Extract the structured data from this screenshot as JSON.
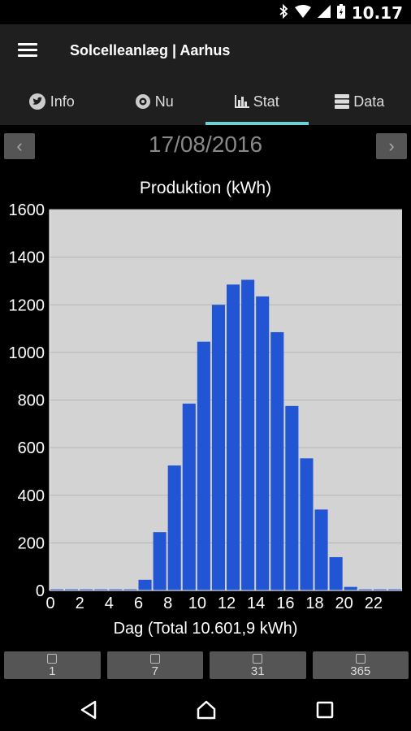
{
  "status": {
    "time": "10.17"
  },
  "app": {
    "title": "Solcelleanlæg | Aarhus"
  },
  "tabs": [
    {
      "label": "Info",
      "icon": "twitter-icon"
    },
    {
      "label": "Nu",
      "icon": "gauge-icon"
    },
    {
      "label": "Stat",
      "icon": "bar-chart-icon",
      "active": true
    },
    {
      "label": "Data",
      "icon": "database-icon"
    }
  ],
  "date": {
    "value": "17/08/2016",
    "prev": "‹",
    "next": "›"
  },
  "chart_data": {
    "type": "bar",
    "title": "Produktion (kWh)",
    "xlabel": "Dag (Total 10.601,9 kWh)",
    "ylabel": "",
    "x": [
      0,
      1,
      2,
      3,
      4,
      5,
      6,
      7,
      8,
      9,
      10,
      11,
      12,
      13,
      14,
      15,
      16,
      17,
      18,
      19,
      20,
      21,
      22,
      23
    ],
    "values": [
      0,
      0,
      0,
      0,
      0,
      0,
      45,
      245,
      525,
      785,
      1045,
      1200,
      1285,
      1305,
      1235,
      1085,
      775,
      555,
      340,
      140,
      15,
      0,
      0,
      0
    ],
    "xticks": [
      "0",
      "2",
      "4",
      "6",
      "8",
      "10",
      "12",
      "14",
      "16",
      "18",
      "20",
      "22"
    ],
    "yticks": [
      "0",
      "200",
      "400",
      "600",
      "800",
      "1000",
      "1200",
      "1400",
      "1600"
    ],
    "ylim": [
      0,
      1600
    ],
    "grid": true,
    "bar_color": "#2255d4",
    "background": "#d3d3d3"
  },
  "range_buttons": [
    "1",
    "7",
    "31",
    "365"
  ]
}
